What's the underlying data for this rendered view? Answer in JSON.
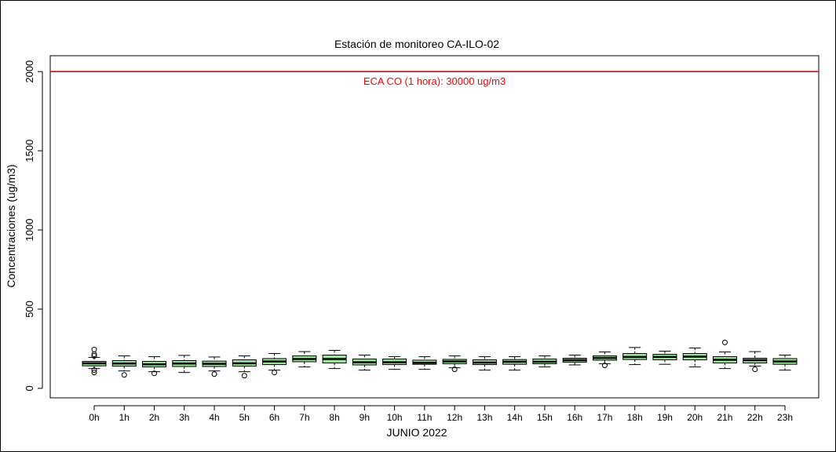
{
  "chart_data": {
    "type": "boxplot",
    "title": "Estación de monitoreo CA-ILO-02",
    "xlabel": "JUNIO 2022",
    "ylabel": "Concentraciones (ug/m3)",
    "ylim": [
      -60,
      2100
    ],
    "yticks": [
      0,
      500,
      1000,
      1500,
      2000
    ],
    "grid": false,
    "box_color": "#90EE90",
    "reference_line": {
      "value": 2000,
      "label": "ECA CO (1 hora): 30000 ug/m3",
      "color": "#FF0000"
    },
    "categories": [
      "0h",
      "1h",
      "2h",
      "3h",
      "4h",
      "5h",
      "6h",
      "7h",
      "8h",
      "9h",
      "10h",
      "11h",
      "12h",
      "13h",
      "14h",
      "15h",
      "16h",
      "17h",
      "18h",
      "19h",
      "20h",
      "21h",
      "22h",
      "23h"
    ],
    "boxes": [
      {
        "min": 125,
        "q1": 142,
        "median": 158,
        "q3": 170,
        "max": 195,
        "outliers": [
          100,
          115,
          205,
          215,
          245
        ]
      },
      {
        "min": 110,
        "q1": 140,
        "median": 157,
        "q3": 175,
        "max": 205,
        "outliers": [
          85
        ]
      },
      {
        "min": 105,
        "q1": 135,
        "median": 152,
        "q3": 170,
        "max": 200,
        "outliers": [
          95
        ]
      },
      {
        "min": 100,
        "q1": 138,
        "median": 157,
        "q3": 175,
        "max": 208,
        "outliers": []
      },
      {
        "min": 110,
        "q1": 138,
        "median": 155,
        "q3": 172,
        "max": 198,
        "outliers": [
          90
        ]
      },
      {
        "min": 105,
        "q1": 140,
        "median": 158,
        "q3": 180,
        "max": 205,
        "outliers": [
          80
        ]
      },
      {
        "min": 115,
        "q1": 150,
        "median": 170,
        "q3": 188,
        "max": 220,
        "outliers": [
          100
        ]
      },
      {
        "min": 135,
        "q1": 168,
        "median": 185,
        "q3": 205,
        "max": 232,
        "outliers": []
      },
      {
        "min": 125,
        "q1": 160,
        "median": 185,
        "q3": 210,
        "max": 240,
        "outliers": []
      },
      {
        "min": 115,
        "q1": 148,
        "median": 165,
        "q3": 185,
        "max": 210,
        "outliers": []
      },
      {
        "min": 120,
        "q1": 150,
        "median": 165,
        "q3": 185,
        "max": 200,
        "outliers": []
      },
      {
        "min": 120,
        "q1": 152,
        "median": 162,
        "q3": 178,
        "max": 200,
        "outliers": []
      },
      {
        "min": 130,
        "q1": 155,
        "median": 170,
        "q3": 183,
        "max": 205,
        "outliers": [
          120
        ]
      },
      {
        "min": 115,
        "q1": 150,
        "median": 163,
        "q3": 180,
        "max": 200,
        "outliers": []
      },
      {
        "min": 115,
        "q1": 152,
        "median": 168,
        "q3": 182,
        "max": 200,
        "outliers": []
      },
      {
        "min": 135,
        "q1": 155,
        "median": 168,
        "q3": 185,
        "max": 205,
        "outliers": []
      },
      {
        "min": 148,
        "q1": 165,
        "median": 178,
        "q3": 190,
        "max": 210,
        "outliers": []
      },
      {
        "min": 155,
        "q1": 178,
        "median": 192,
        "q3": 205,
        "max": 230,
        "outliers": [
          145
        ]
      },
      {
        "min": 150,
        "q1": 182,
        "median": 198,
        "q3": 220,
        "max": 258,
        "outliers": []
      },
      {
        "min": 152,
        "q1": 180,
        "median": 198,
        "q3": 215,
        "max": 235,
        "outliers": []
      },
      {
        "min": 135,
        "q1": 180,
        "median": 200,
        "q3": 220,
        "max": 255,
        "outliers": []
      },
      {
        "min": 125,
        "q1": 160,
        "median": 180,
        "q3": 200,
        "max": 230,
        "outliers": [
          290
        ]
      },
      {
        "min": 140,
        "q1": 160,
        "median": 178,
        "q3": 190,
        "max": 232,
        "outliers": [
          120
        ]
      },
      {
        "min": 115,
        "q1": 152,
        "median": 170,
        "q3": 188,
        "max": 210,
        "outliers": []
      }
    ]
  }
}
